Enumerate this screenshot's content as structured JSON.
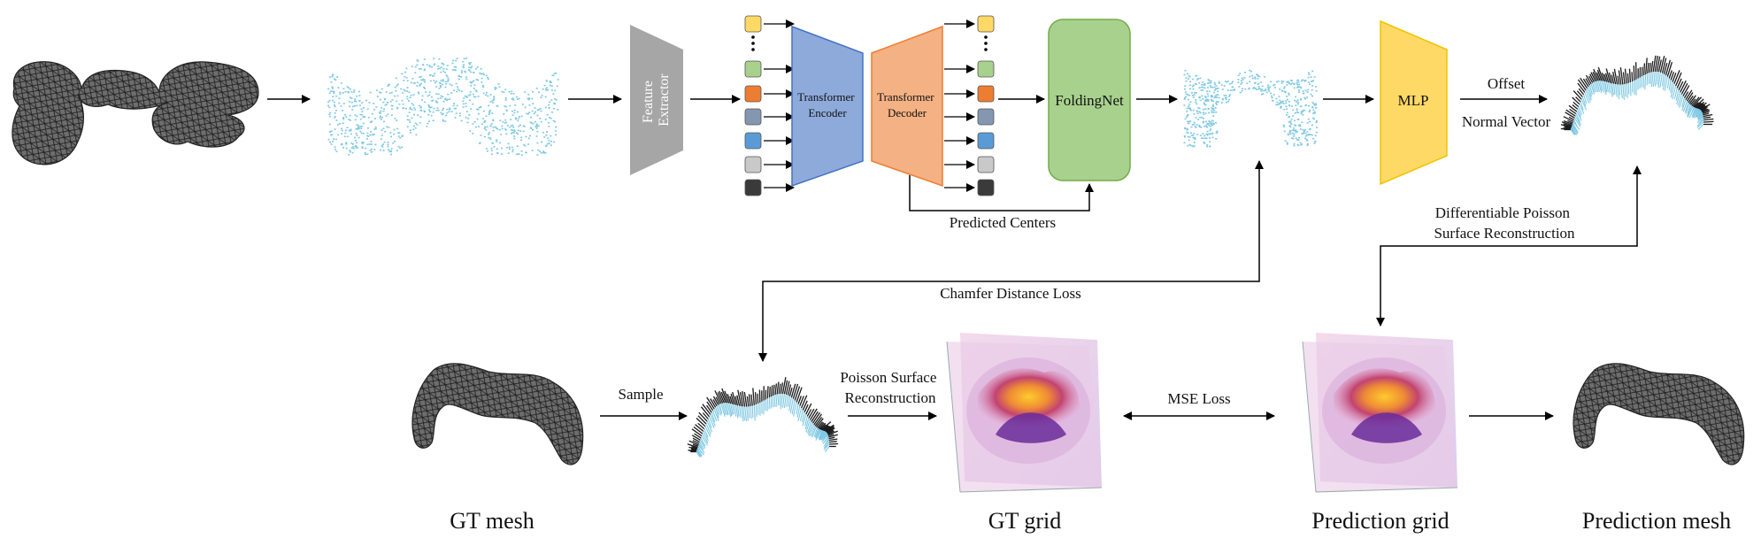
{
  "blocks": {
    "feature_extractor": "Feature Extractor",
    "transformer_encoder": "Transformer Encoder",
    "transformer_decoder": "Transformer Decoder",
    "foldingnet": "FoldingNet",
    "mlp": "MLP"
  },
  "labels": {
    "predicted_centers": "Predicted Centers",
    "offset": "Offset",
    "normal_vector": "Normal Vector",
    "dpsr_line1": "Differentiable Poisson",
    "dpsr_line2": "Surface Reconstruction",
    "chamfer": "Chamfer Distance Loss",
    "sample": "Sample",
    "psr_line1": "Poisson Surface",
    "psr_line2": "Reconstruction",
    "mse": "MSE Loss"
  },
  "captions": {
    "gt_mesh": "GT mesh",
    "gt_grid": "GT grid",
    "prediction_grid": "Prediction grid",
    "prediction_mesh": "Prediction mesh"
  },
  "colors": {
    "encoder": "#8eaadb",
    "decoder": "#f4b183",
    "foldingnet": "#a9d18e",
    "mlp": "#ffd966",
    "extractor": "#a6a6a6",
    "points": "#7ec8e3",
    "token_yellow": "#ffd966",
    "token_green": "#a9d18e",
    "token_orange": "#ed7d31",
    "token_slate": "#8497b0",
    "token_blue": "#5b9bd5",
    "token_lightgray": "#c9c9c9",
    "token_black": "#3a3a3a"
  }
}
